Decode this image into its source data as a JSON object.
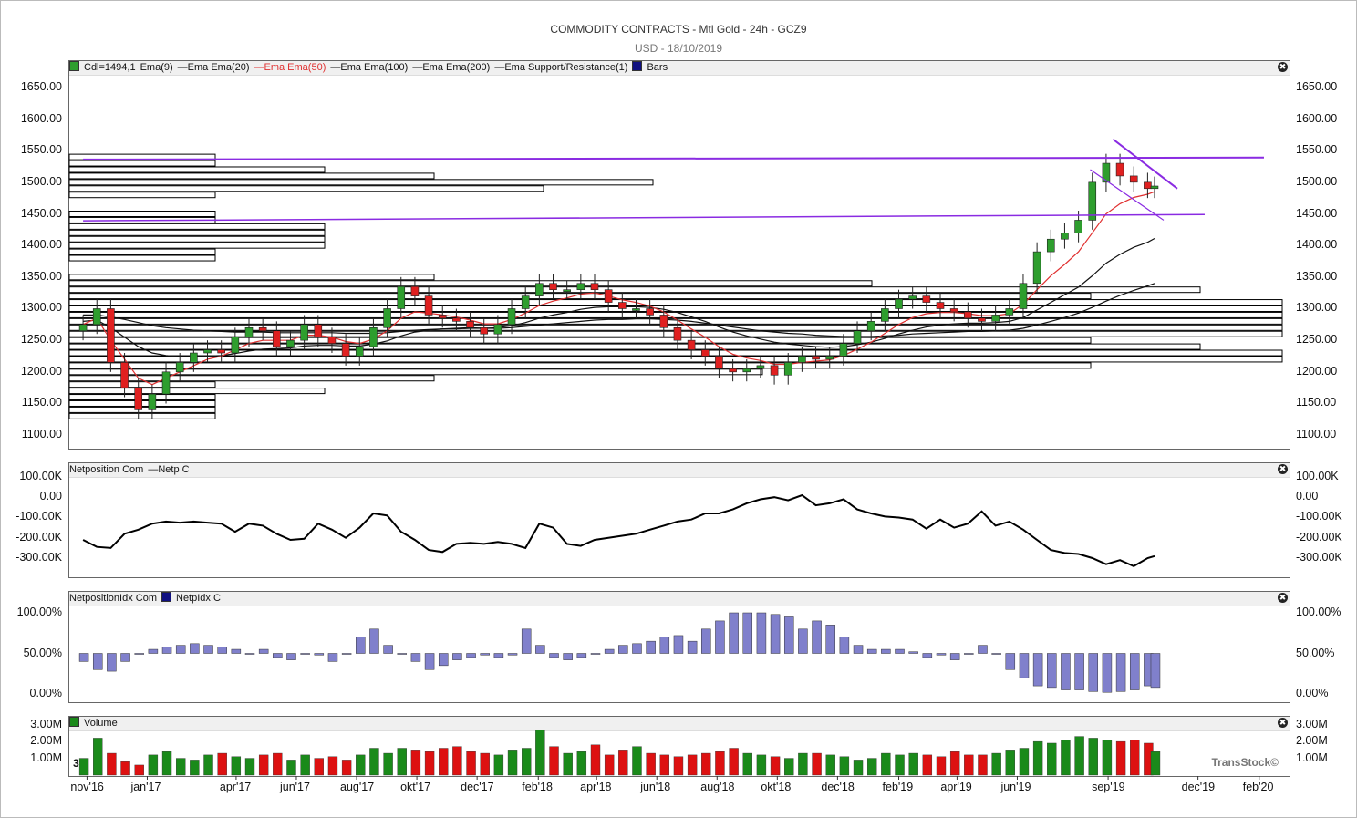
{
  "header": {
    "title": "COMMODITY CONTRACTS - Mtl Gold - 24h - GCZ9",
    "subtitle": "USD - 18/10/2019"
  },
  "panels": {
    "price": {
      "legend": [
        "Cdl=1494,1",
        "Ema(9)",
        "—Ema  Ema(20)",
        "—Ema  Ema(50)",
        "—Ema  Ema(100)",
        "—Ema  Ema(200)",
        "—Ema  Support/Resistance(1)",
        "Bars"
      ],
      "y_labels": [
        "1650.00",
        "1600.00",
        "1550.00",
        "1500.00",
        "1450.00",
        "1400.00",
        "1350.00",
        "1300.00",
        "1250.00",
        "1200.00",
        "1150.00",
        "1100.00"
      ]
    },
    "netposition": {
      "legend": [
        "Netposition Com",
        "—Netp C"
      ],
      "y_labels": [
        "100.00K",
        "0.00",
        "-100.00K",
        "-200.00K",
        "-300.00K"
      ]
    },
    "netidx": {
      "legend": [
        "NetpositionIdx Com",
        "NetpIdx C"
      ],
      "y_labels": [
        "100.00%",
        "50.00%",
        "0.00%"
      ]
    },
    "volume": {
      "legend": [
        "Volume"
      ],
      "y_labels": [
        "3.00M",
        "2.00M",
        "1.00M"
      ],
      "marker": "3v",
      "watermark": "TransStock©"
    }
  },
  "x_labels": [
    "nov'16",
    "jan'17",
    "apr'17",
    "jun'17",
    "aug'17",
    "okt'17",
    "dec'17",
    "feb'18",
    "apr'18",
    "jun'18",
    "aug'18",
    "okt'18",
    "dec'18",
    "feb'19",
    "apr'19",
    "jun'19",
    "sep'19",
    "dec'19",
    "feb'20"
  ],
  "colors": {
    "up": "#2e9e2e",
    "down": "#e02020",
    "ema50": "#e03030",
    "resistance": "#8a2be2",
    "hist": "#8080cc",
    "volume_up": "#1a8a1a",
    "volume_down": "#dd1111"
  },
  "chart_data": [
    {
      "type": "candlestick",
      "title": "COMMODITY CONTRACTS - Mtl Gold - 24h - GCZ9",
      "ylim": [
        1080,
        1670
      ],
      "x": [
        "2016-10-28",
        "2016-11-11",
        "2016-11-25",
        "2016-12-09",
        "2016-12-23",
        "2017-01-06",
        "2017-01-20",
        "2017-02-03",
        "2017-02-17",
        "2017-03-03",
        "2017-03-17",
        "2017-03-31",
        "2017-04-14",
        "2017-04-28",
        "2017-05-12",
        "2017-05-26",
        "2017-06-09",
        "2017-06-23",
        "2017-07-07",
        "2017-07-21",
        "2017-08-04",
        "2017-08-18",
        "2017-09-01",
        "2017-09-15",
        "2017-09-29",
        "2017-10-13",
        "2017-10-27",
        "2017-11-10",
        "2017-11-24",
        "2017-12-08",
        "2017-12-22",
        "2018-01-05",
        "2018-01-19",
        "2018-02-02",
        "2018-02-16",
        "2018-03-02",
        "2018-03-16",
        "2018-03-30",
        "2018-04-13",
        "2018-04-27",
        "2018-05-11",
        "2018-05-25",
        "2018-06-08",
        "2018-06-22",
        "2018-07-06",
        "2018-07-20",
        "2018-08-03",
        "2018-08-17",
        "2018-08-31",
        "2018-09-14",
        "2018-09-28",
        "2018-10-12",
        "2018-10-26",
        "2018-11-09",
        "2018-11-23",
        "2018-12-07",
        "2018-12-21",
        "2019-01-04",
        "2019-01-18",
        "2019-02-01",
        "2019-02-15",
        "2019-03-01",
        "2019-03-15",
        "2019-03-29",
        "2019-04-12",
        "2019-04-26",
        "2019-05-10",
        "2019-05-24",
        "2019-06-07",
        "2019-06-21",
        "2019-07-05",
        "2019-07-19",
        "2019-08-02",
        "2019-08-16",
        "2019-08-30",
        "2019-09-13",
        "2019-09-27",
        "2019-10-11",
        "2019-10-18"
      ],
      "close": [
        1275,
        1300,
        1215,
        1175,
        1140,
        1165,
        1200,
        1215,
        1230,
        1235,
        1230,
        1255,
        1270,
        1265,
        1240,
        1250,
        1275,
        1255,
        1245,
        1225,
        1240,
        1270,
        1300,
        1335,
        1320,
        1290,
        1285,
        1280,
        1270,
        1260,
        1275,
        1300,
        1320,
        1340,
        1330,
        1330,
        1340,
        1330,
        1310,
        1300,
        1300,
        1290,
        1270,
        1250,
        1235,
        1225,
        1205,
        1200,
        1205,
        1210,
        1195,
        1215,
        1225,
        1220,
        1225,
        1245,
        1265,
        1280,
        1300,
        1315,
        1320,
        1310,
        1300,
        1295,
        1285,
        1280,
        1290,
        1300,
        1340,
        1390,
        1410,
        1420,
        1440,
        1500,
        1530,
        1510,
        1500,
        1490,
        1494
      ],
      "ema_fast": [
        1275,
        1285,
        1250,
        1220,
        1190,
        1180,
        1190,
        1200,
        1210,
        1220,
        1225,
        1235,
        1245,
        1250,
        1250,
        1250,
        1258,
        1258,
        1255,
        1248,
        1245,
        1252,
        1265,
        1285,
        1295,
        1293,
        1290,
        1287,
        1282,
        1276,
        1276,
        1283,
        1293,
        1305,
        1312,
        1317,
        1323,
        1325,
        1320,
        1314,
        1310,
        1304,
        1295,
        1282,
        1268,
        1255,
        1240,
        1228,
        1222,
        1218,
        1212,
        1212,
        1215,
        1217,
        1219,
        1226,
        1236,
        1247,
        1261,
        1275,
        1286,
        1292,
        1294,
        1294,
        1292,
        1289,
        1289,
        1292,
        1307,
        1330,
        1352,
        1370,
        1390,
        1420,
        1450,
        1466,
        1476,
        1481,
        1485
      ],
      "ema_mid": [
        1280,
        1282,
        1270,
        1255,
        1240,
        1230,
        1226,
        1224,
        1224,
        1225,
        1226,
        1229,
        1233,
        1236,
        1237,
        1238,
        1241,
        1242,
        1242,
        1241,
        1241,
        1244,
        1249,
        1257,
        1263,
        1266,
        1268,
        1269,
        1270,
        1269,
        1270,
        1273,
        1278,
        1285,
        1290,
        1294,
        1299,
        1302,
        1303,
        1303,
        1303,
        1302,
        1299,
        1294,
        1287,
        1280,
        1271,
        1263,
        1257,
        1252,
        1247,
        1244,
        1242,
        1240,
        1239,
        1240,
        1243,
        1247,
        1253,
        1260,
        1266,
        1271,
        1274,
        1276,
        1277,
        1277,
        1278,
        1280,
        1286,
        1298,
        1310,
        1322,
        1334,
        1352,
        1372,
        1386,
        1397,
        1405,
        1411
      ],
      "ema_slow": [
        1290,
        1290,
        1287,
        1283,
        1278,
        1273,
        1270,
        1268,
        1266,
        1265,
        1264,
        1263,
        1263,
        1263,
        1262,
        1262,
        1262,
        1262,
        1262,
        1261,
        1261,
        1261,
        1262,
        1264,
        1266,
        1267,
        1268,
        1268,
        1269,
        1269,
        1269,
        1270,
        1272,
        1274,
        1276,
        1278,
        1280,
        1282,
        1283,
        1283,
        1284,
        1284,
        1283,
        1282,
        1280,
        1277,
        1274,
        1271,
        1268,
        1265,
        1263,
        1261,
        1260,
        1258,
        1257,
        1256,
        1256,
        1256,
        1257,
        1258,
        1260,
        1261,
        1262,
        1263,
        1264,
        1264,
        1265,
        1266,
        1269,
        1274,
        1280,
        1286,
        1293,
        1302,
        1312,
        1321,
        1329,
        1336,
        1340
      ]
    },
    {
      "type": "line",
      "name": "Netp C",
      "ylim": [
        -390000,
        100000
      ],
      "values": [
        -210000,
        -245000,
        -250000,
        -180000,
        -160000,
        -130000,
        -120000,
        -125000,
        -120000,
        -125000,
        -130000,
        -170000,
        -130000,
        -140000,
        -180000,
        -210000,
        -205000,
        -130000,
        -160000,
        -200000,
        -150000,
        -80000,
        -90000,
        -170000,
        -210000,
        -260000,
        -270000,
        -230000,
        -225000,
        -230000,
        -220000,
        -230000,
        -250000,
        -130000,
        -150000,
        -230000,
        -240000,
        -210000,
        -200000,
        -190000,
        -180000,
        -160000,
        -140000,
        -120000,
        -110000,
        -80000,
        -80000,
        -60000,
        -30000,
        -10000,
        0,
        -15000,
        10000,
        -40000,
        -30000,
        -10000,
        -60000,
        -80000,
        -95000,
        -100000,
        -110000,
        -155000,
        -110000,
        -150000,
        -130000,
        -70000,
        -140000,
        -120000,
        -160000,
        -210000,
        -260000,
        -275000,
        -280000,
        -300000,
        -330000,
        -310000,
        -340000,
        -300000,
        -290000
      ]
    },
    {
      "type": "bar",
      "name": "NetpIdx C",
      "ylim": [
        0,
        100
      ],
      "values": [
        40,
        30,
        28,
        40,
        50,
        55,
        58,
        60,
        62,
        60,
        58,
        55,
        50,
        55,
        45,
        42,
        50,
        48,
        40,
        50,
        70,
        80,
        60,
        50,
        40,
        30,
        35,
        42,
        45,
        48,
        45,
        48,
        80,
        60,
        45,
        42,
        45,
        50,
        55,
        60,
        62,
        65,
        70,
        72,
        65,
        80,
        90,
        100,
        100,
        100,
        98,
        95,
        80,
        90,
        85,
        70,
        60,
        55,
        55,
        55,
        52,
        45,
        48,
        42,
        50,
        60,
        50,
        30,
        20,
        10,
        8,
        5,
        5,
        3,
        2,
        3,
        5,
        10,
        8
      ]
    },
    {
      "type": "bar",
      "name": "Volume",
      "ylim": [
        0,
        3200000
      ],
      "values": [
        1000000,
        2200000,
        1300000,
        800000,
        600000,
        1200000,
        1400000,
        1000000,
        900000,
        1200000,
        1300000,
        1100000,
        1000000,
        1200000,
        1300000,
        900000,
        1200000,
        1000000,
        1100000,
        900000,
        1200000,
        1600000,
        1300000,
        1600000,
        1500000,
        1400000,
        1600000,
        1700000,
        1400000,
        1300000,
        1200000,
        1500000,
        1600000,
        2700000,
        1700000,
        1300000,
        1400000,
        1800000,
        1200000,
        1500000,
        1700000,
        1300000,
        1200000,
        1100000,
        1200000,
        1300000,
        1400000,
        1600000,
        1300000,
        1200000,
        1100000,
        1000000,
        1300000,
        1300000,
        1200000,
        1100000,
        900000,
        1000000,
        1300000,
        1200000,
        1300000,
        1200000,
        1100000,
        1400000,
        1200000,
        1200000,
        1300000,
        1500000,
        1600000,
        2000000,
        1900000,
        2100000,
        2300000,
        2200000,
        2100000,
        2000000,
        2100000,
        1900000,
        1400000
      ]
    }
  ]
}
